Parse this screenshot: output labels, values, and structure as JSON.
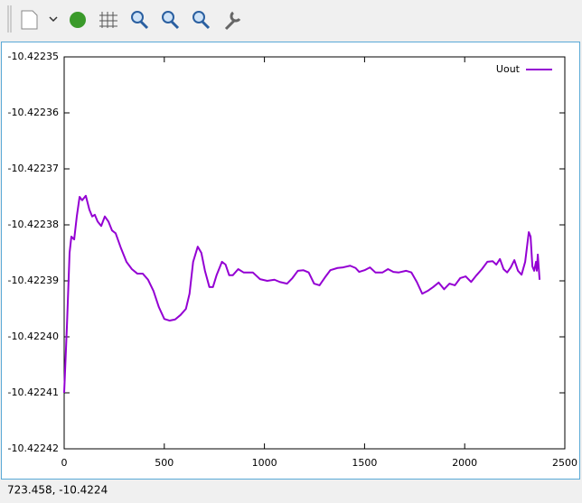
{
  "chart_data": {
    "type": "line",
    "x": [
      0,
      14,
      27,
      36,
      50,
      63,
      77,
      90,
      108,
      126,
      140,
      153,
      167,
      185,
      203,
      221,
      239,
      257,
      284,
      311,
      338,
      365,
      392,
      419,
      446,
      473,
      500,
      527,
      554,
      581,
      608,
      626,
      644,
      667,
      685,
      703,
      725,
      743,
      761,
      788,
      806,
      824,
      842,
      869,
      896,
      942,
      978,
      1014,
      1050,
      1077,
      1113,
      1140,
      1167,
      1194,
      1221,
      1248,
      1275,
      1302,
      1329,
      1365,
      1392,
      1428,
      1455,
      1473,
      1500,
      1527,
      1554,
      1590,
      1617,
      1644,
      1671,
      1707,
      1734,
      1761,
      1788,
      1815,
      1843,
      1870,
      1897,
      1924,
      1951,
      1978,
      2005,
      2032,
      2059,
      2086,
      2113,
      2140,
      2158,
      2176,
      2194,
      2212,
      2230,
      2248,
      2266,
      2284,
      2302,
      2320,
      2329,
      2338,
      2347,
      2356,
      2360,
      2365,
      2374
    ],
    "series": [
      {
        "name": "Uout",
        "color": "#9400d3",
        "values": [
          -10.42241,
          -10.4223979,
          -10.422385,
          -10.4223821,
          -10.4223826,
          -10.4223785,
          -10.422375,
          -10.4223756,
          -10.4223748,
          -10.4223773,
          -10.4223785,
          -10.4223782,
          -10.4223794,
          -10.4223802,
          -10.4223785,
          -10.4223794,
          -10.422381,
          -10.4223815,
          -10.4223842,
          -10.4223866,
          -10.4223879,
          -10.4223887,
          -10.4223887,
          -10.4223898,
          -10.4223918,
          -10.4223947,
          -10.4223968,
          -10.4223971,
          -10.4223969,
          -10.4223961,
          -10.422395,
          -10.4223923,
          -10.4223866,
          -10.4223839,
          -10.422385,
          -10.4223882,
          -10.4223911,
          -10.4223911,
          -10.422389,
          -10.4223866,
          -10.4223871,
          -10.422389,
          -10.422389,
          -10.4223879,
          -10.4223885,
          -10.4223885,
          -10.4223897,
          -10.42239,
          -10.4223898,
          -10.4223902,
          -10.4223905,
          -10.4223895,
          -10.4223882,
          -10.4223881,
          -10.4223885,
          -10.4223905,
          -10.4223908,
          -10.4223894,
          -10.4223881,
          -10.4223877,
          -10.4223876,
          -10.4223873,
          -10.4223877,
          -10.4223884,
          -10.4223881,
          -10.4223876,
          -10.4223885,
          -10.4223885,
          -10.4223879,
          -10.4223884,
          -10.4223885,
          -10.4223882,
          -10.4223885,
          -10.4223902,
          -10.4223923,
          -10.4223918,
          -10.4223911,
          -10.4223903,
          -10.4223915,
          -10.4223905,
          -10.4223908,
          -10.4223895,
          -10.4223892,
          -10.4223902,
          -10.422389,
          -10.4223879,
          -10.4223866,
          -10.4223865,
          -10.4223871,
          -10.4223861,
          -10.4223879,
          -10.4223885,
          -10.4223876,
          -10.4223863,
          -10.4223882,
          -10.4223889,
          -10.4223866,
          -10.4223813,
          -10.4223821,
          -10.4223874,
          -10.4223882,
          -10.4223866,
          -10.4223882,
          -10.4223853,
          -10.4223898
        ]
      }
    ],
    "xlim": [
      0,
      2500
    ],
    "xticks": [
      0,
      500,
      1000,
      1500,
      2000,
      2500
    ],
    "ylim": [
      -10.42242,
      -10.42235
    ],
    "yticks": [
      {
        "value": -10.42242,
        "label": "-10.42242"
      },
      -10.42241,
      {
        "value": -10.4224,
        "label": "-10.42240"
      },
      -10.42239,
      -10.42238,
      -10.42237,
      -10.42236,
      -10.42235
    ],
    "legend": "top-right",
    "grid": false
  },
  "status": "723.458, -10.4224"
}
